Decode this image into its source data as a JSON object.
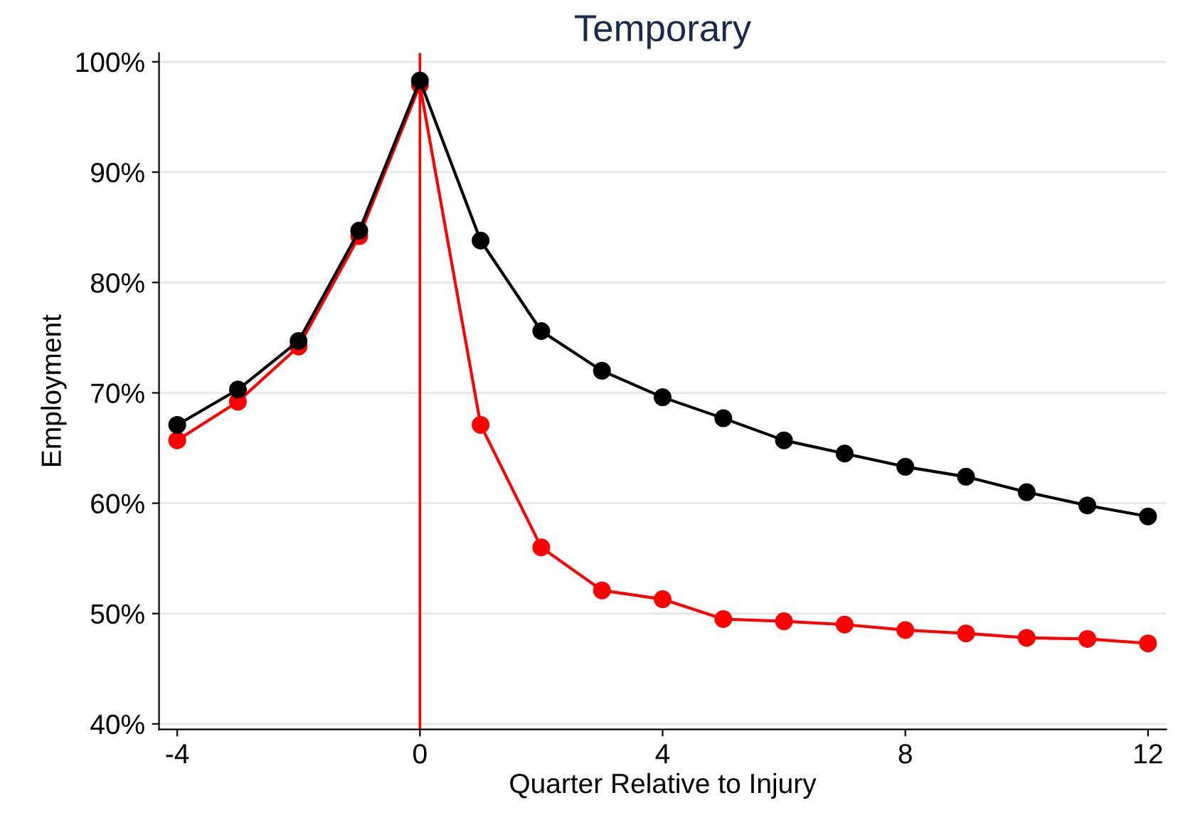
{
  "chart_data": {
    "type": "line",
    "title": "Temporary",
    "xlabel": "Quarter Relative to Injury",
    "ylabel": "Employment",
    "x": [
      -4,
      -3,
      -2,
      -1,
      0,
      1,
      2,
      3,
      4,
      5,
      6,
      7,
      8,
      9,
      10,
      11,
      12
    ],
    "series": [
      {
        "color": "#000000",
        "values": [
          67.1,
          70.3,
          74.7,
          84.7,
          98.3,
          83.8,
          75.6,
          72.0,
          69.6,
          67.7,
          65.7,
          64.5,
          63.3,
          62.4,
          61.0,
          59.8,
          58.8
        ]
      },
      {
        "color": "#ff0000",
        "values": [
          65.7,
          69.2,
          74.2,
          84.2,
          97.9,
          67.1,
          56.0,
          52.1,
          51.3,
          49.5,
          49.3,
          49.0,
          48.5,
          48.2,
          47.8,
          47.7,
          47.3
        ]
      }
    ],
    "xlim": [
      -4.3,
      12.3
    ],
    "xticks": [
      -4,
      0,
      4,
      8,
      12
    ],
    "ylim": [
      39.5,
      100.8
    ],
    "yticks": [
      {
        "value": 40,
        "label": "40%"
      },
      {
        "value": 50,
        "label": "50%"
      },
      {
        "value": 60,
        "label": "60%"
      },
      {
        "value": 70,
        "label": "70%"
      },
      {
        "value": 80,
        "label": "80%"
      },
      {
        "value": 90,
        "label": "90%"
      },
      {
        "value": 100,
        "label": "100%"
      }
    ],
    "ref_lines": [
      {
        "axis": "x",
        "value": 0,
        "color": "#ff0000",
        "line_style": "solid"
      }
    ],
    "grid": "y",
    "marker": "circle",
    "line_style": "solid"
  }
}
